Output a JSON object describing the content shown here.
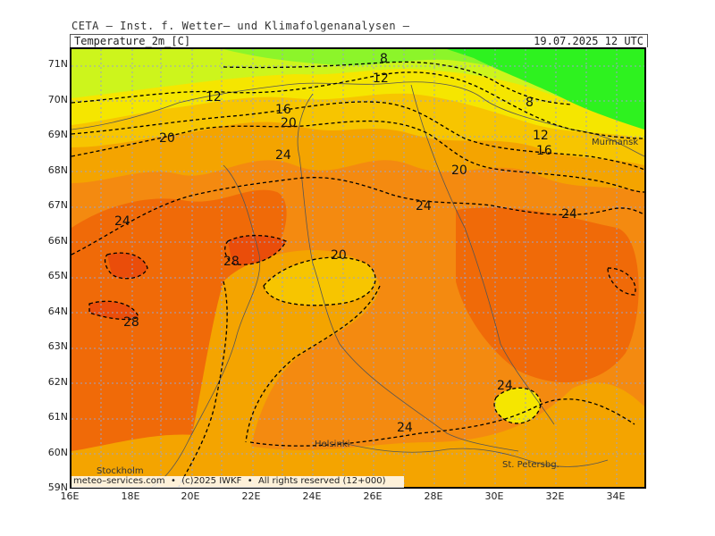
{
  "header": {
    "title": "CETA – Inst. f. Wetter– und Klimafolgenanalysen –",
    "parameter": "Temperature_2m_[C]",
    "valid_time": "19.07.2025 12 UTC"
  },
  "axes": {
    "lat_labels": [
      "71N",
      "70N",
      "69N",
      "68N",
      "67N",
      "66N",
      "65N",
      "64N",
      "63N",
      "62N",
      "61N",
      "60N",
      "59N"
    ],
    "lon_labels": [
      "16E",
      "18E",
      "20E",
      "22E",
      "24E",
      "26E",
      "28E",
      "30E",
      "32E",
      "34E"
    ]
  },
  "contour_labels": [
    "8",
    "12",
    "8",
    "12",
    "16",
    "20",
    "16",
    "12",
    "20",
    "24",
    "20",
    "24",
    "24",
    "28",
    "20",
    "28",
    "24",
    "24",
    "24"
  ],
  "cities": [
    "Murmansk",
    "Helsinki",
    "Stockholm",
    "St. Petersbg."
  ],
  "footer": "meteo–services.com  •  (c)2025 IWKF  •  All rights reserved (12+000)",
  "colors": {
    "green": "#2ef21f",
    "light_green": "#8cf52a",
    "yellow_green": "#cdf51c",
    "yellow": "#f5e600",
    "gold": "#f7c500",
    "light_orange": "#f4a400",
    "orange": "#f48a10",
    "dark_orange": "#f06a08",
    "red_orange": "#ea4d0a"
  }
}
